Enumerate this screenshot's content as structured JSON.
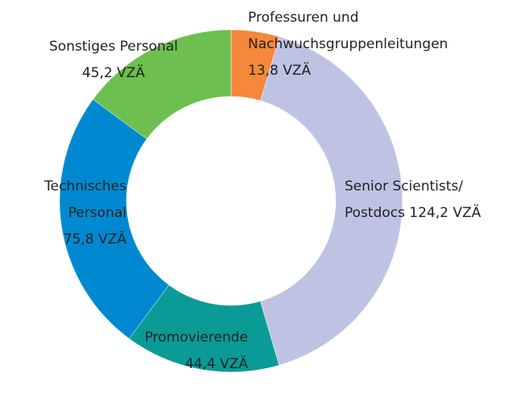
{
  "chart_data": {
    "type": "donut",
    "categories": [
      "Professuren und Nachwuchsgruppenleitungen",
      "Senior Scientists/ Postdocs",
      "Promovierende",
      "Technisches Personal",
      "Sonstiges Personal"
    ],
    "values": [
      13.8,
      124.2,
      44.4,
      75.8,
      45.2
    ],
    "value_labels": [
      "13,8 VZÄ",
      "124,2 VZÄ",
      "44,4 VZÄ",
      "75,8 VZÄ",
      "45,2 VZÄ"
    ],
    "colors": [
      "#f5883a",
      "#bfc3e3",
      "#0a9b96",
      "#0089d0",
      "#6dbf4f"
    ]
  }
}
